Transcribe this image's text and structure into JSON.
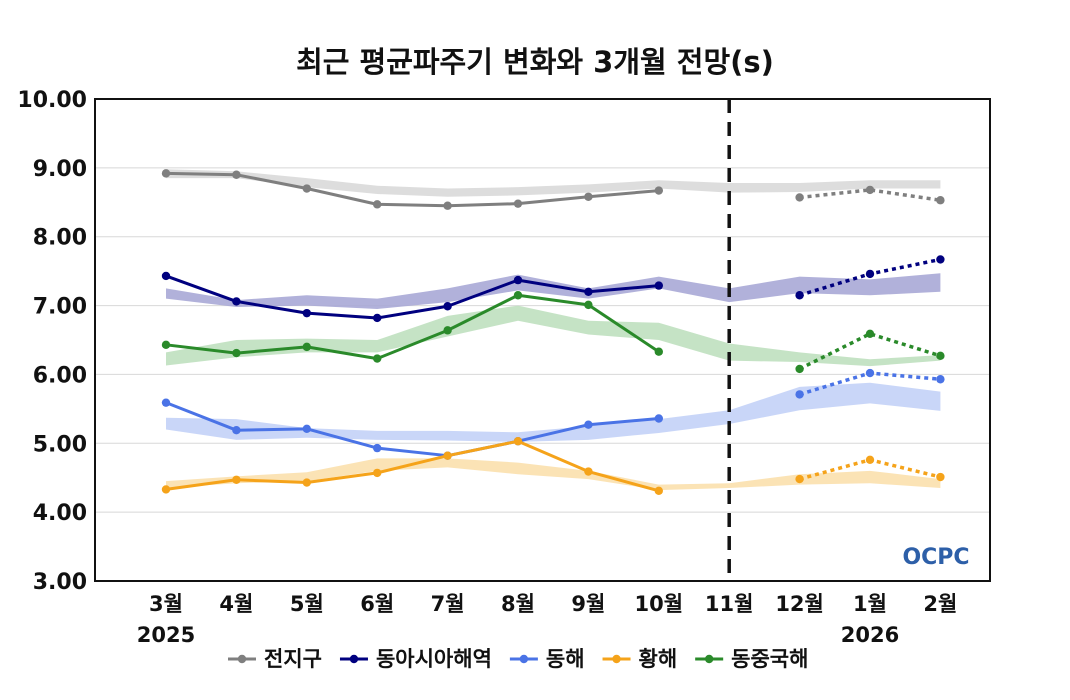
{
  "chart_data": {
    "type": "line",
    "title": "최근 평균파주기 변화와 3개월 전망(s)",
    "xlabel": "",
    "ylabel": "",
    "ylim": [
      3.0,
      10.0
    ],
    "yticks": [
      "3.00",
      "4.00",
      "5.00",
      "6.00",
      "7.00",
      "8.00",
      "9.00",
      "10.00"
    ],
    "categories": [
      "3월",
      "4월",
      "5월",
      "6월",
      "7월",
      "8월",
      "9월",
      "10월",
      "11월",
      "12월",
      "1월",
      "2월"
    ],
    "year_labels": [
      {
        "category": "3월",
        "text": "2025"
      },
      {
        "category": "1월",
        "text": "2026"
      }
    ],
    "divider_category": "11월",
    "logo_text": "OCPC",
    "grid": true,
    "legend_position": "bottom",
    "series": [
      {
        "name": "전지구",
        "color": "#7f7f7f",
        "band_color": "#d9d9d9",
        "observed": [
          8.92,
          8.9,
          8.7,
          8.47,
          8.45,
          8.48,
          8.58,
          8.67,
          null,
          null,
          null,
          null
        ],
        "forecast": [
          null,
          null,
          null,
          null,
          null,
          null,
          null,
          null,
          null,
          8.57,
          8.68,
          8.53
        ],
        "band_low": [
          8.85,
          8.85,
          8.72,
          8.62,
          8.58,
          8.6,
          8.64,
          8.7,
          8.64,
          8.65,
          8.7,
          8.7
        ],
        "band_high": [
          8.98,
          8.95,
          8.85,
          8.74,
          8.7,
          8.72,
          8.76,
          8.82,
          8.78,
          8.78,
          8.82,
          8.82
        ]
      },
      {
        "name": "동아시아해역",
        "color": "#00007f",
        "band_color": "#a9a9d6",
        "observed": [
          7.43,
          7.06,
          6.89,
          6.82,
          6.99,
          7.37,
          7.2,
          7.29,
          null,
          null,
          null,
          null
        ],
        "forecast": [
          null,
          null,
          null,
          null,
          null,
          null,
          null,
          null,
          null,
          7.15,
          7.46,
          7.67
        ],
        "band_low": [
          7.1,
          6.98,
          7.0,
          6.95,
          7.05,
          7.22,
          7.1,
          7.25,
          7.05,
          7.18,
          7.15,
          7.2
        ],
        "band_high": [
          7.25,
          7.08,
          7.15,
          7.1,
          7.25,
          7.45,
          7.25,
          7.42,
          7.25,
          7.42,
          7.38,
          7.47
        ]
      },
      {
        "name": "동해",
        "color": "#4a73e6",
        "band_color": "#c3d1f7",
        "observed": [
          5.59,
          5.19,
          5.21,
          4.93,
          4.82,
          5.03,
          5.27,
          5.36,
          null,
          null,
          null,
          null
        ],
        "forecast": [
          null,
          null,
          null,
          null,
          null,
          null,
          null,
          null,
          null,
          5.71,
          6.02,
          5.93
        ],
        "band_low": [
          5.2,
          5.05,
          5.08,
          5.05,
          5.04,
          5.02,
          5.05,
          5.15,
          5.28,
          5.48,
          5.58,
          5.47
        ],
        "band_high": [
          5.37,
          5.35,
          5.22,
          5.18,
          5.18,
          5.16,
          5.25,
          5.35,
          5.48,
          5.82,
          5.88,
          5.75
        ]
      },
      {
        "name": "황해",
        "color": "#f5a31a",
        "band_color": "#fbe0ad",
        "observed": [
          4.33,
          4.47,
          4.43,
          4.57,
          4.82,
          5.03,
          4.59,
          4.31,
          null,
          null,
          null,
          null
        ],
        "forecast": [
          null,
          null,
          null,
          null,
          null,
          null,
          null,
          null,
          null,
          4.48,
          4.76,
          4.51
        ],
        "band_low": [
          4.35,
          4.42,
          4.45,
          4.6,
          4.65,
          4.55,
          4.48,
          4.32,
          4.35,
          4.4,
          4.42,
          4.35
        ],
        "band_high": [
          4.45,
          4.52,
          4.58,
          4.78,
          4.78,
          4.72,
          4.6,
          4.4,
          4.42,
          4.55,
          4.6,
          4.48
        ]
      },
      {
        "name": "동중국해",
        "color": "#2a8a2a",
        "band_color": "#bfe0bf",
        "observed": [
          6.43,
          6.31,
          6.4,
          6.23,
          6.64,
          7.15,
          7.01,
          6.33,
          null,
          null,
          null,
          null
        ],
        "forecast": [
          null,
          null,
          null,
          null,
          null,
          null,
          null,
          null,
          null,
          6.08,
          6.59,
          6.27
        ],
        "band_low": [
          6.13,
          6.25,
          6.32,
          6.32,
          6.55,
          6.78,
          6.58,
          6.5,
          6.2,
          6.18,
          6.12,
          6.2
        ],
        "band_high": [
          6.32,
          6.5,
          6.52,
          6.5,
          6.85,
          7.0,
          6.78,
          6.75,
          6.45,
          6.32,
          6.22,
          6.28
        ]
      }
    ]
  }
}
